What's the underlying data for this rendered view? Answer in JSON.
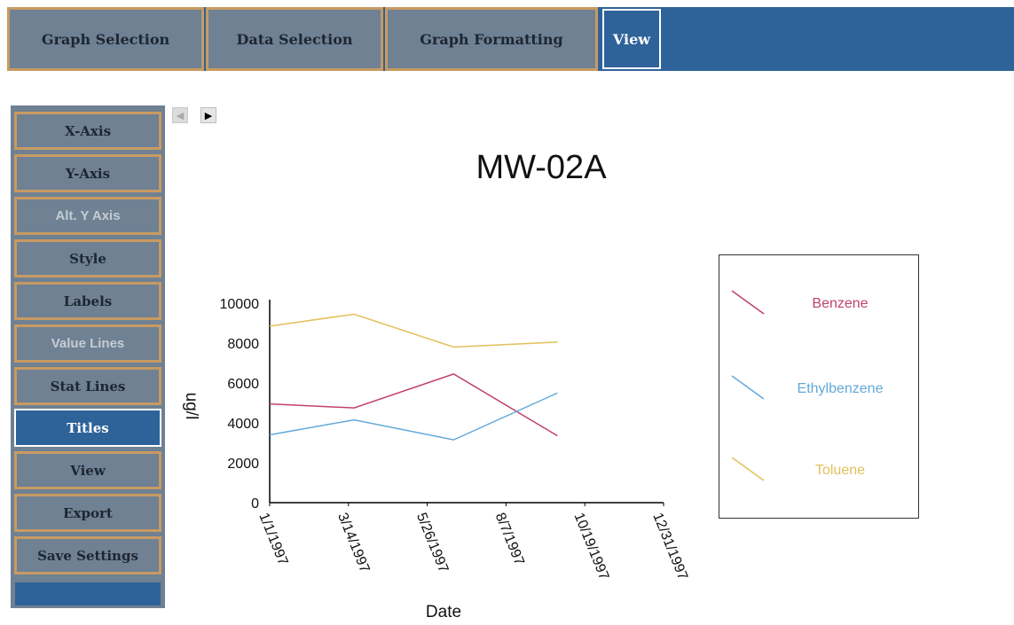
{
  "top_tabs": [
    {
      "label": "Graph Selection"
    },
    {
      "label": "Data Selection"
    },
    {
      "label": "Graph Formatting"
    },
    {
      "label": "View",
      "active": true
    }
  ],
  "side_menu": [
    {
      "label": "X-Axis",
      "state": "normal"
    },
    {
      "label": "Y-Axis",
      "state": "normal"
    },
    {
      "label": "Alt. Y Axis",
      "state": "disabled"
    },
    {
      "label": "Style",
      "state": "normal"
    },
    {
      "label": "Labels",
      "state": "normal"
    },
    {
      "label": "Value Lines",
      "state": "disabled"
    },
    {
      "label": "Stat Lines",
      "state": "normal"
    },
    {
      "label": "Titles",
      "state": "active"
    },
    {
      "label": "View",
      "state": "normal"
    },
    {
      "label": "Export",
      "state": "normal"
    },
    {
      "label": "Save Settings",
      "state": "normal"
    }
  ],
  "pager": {
    "prev_icon": "arrow-left-icon",
    "next_icon": "arrow-right-icon"
  },
  "colors": {
    "accent": "#2e6399",
    "button_bg": "#6f8193",
    "button_border": "#c89a62"
  },
  "chart_data": {
    "type": "line",
    "title": "MW-02A",
    "xlabel": "Date",
    "ylabel": "ug/l",
    "x_ticks": [
      "1/1/1997",
      "3/14/1997",
      "5/26/1997",
      "8/7/1997",
      "10/19/1997",
      "12/31/1997"
    ],
    "y_ticks": [
      0,
      2000,
      4000,
      6000,
      8000,
      10000
    ],
    "ylim": [
      0,
      10000
    ],
    "xlim": [
      "1997-01-01",
      "1997-12-31"
    ],
    "grid": false,
    "legend_position": "right",
    "series": [
      {
        "name": "Benzene",
        "color": "#c0426a",
        "x": [
          "1997-01-01",
          "1997-03-20",
          "1997-06-20",
          "1997-09-24"
        ],
        "values": [
          4950,
          4750,
          6450,
          3350
        ]
      },
      {
        "name": "Ethylbenzene",
        "color": "#62a9d8",
        "x": [
          "1997-01-01",
          "1997-03-20",
          "1997-06-20",
          "1997-09-24"
        ],
        "values": [
          3400,
          4150,
          3150,
          5500
        ]
      },
      {
        "name": "Toluene",
        "color": "#e2c05a",
        "x": [
          "1997-01-01",
          "1997-03-20",
          "1997-06-20",
          "1997-09-24"
        ],
        "values": [
          8850,
          9450,
          7800,
          8050
        ]
      }
    ]
  }
}
